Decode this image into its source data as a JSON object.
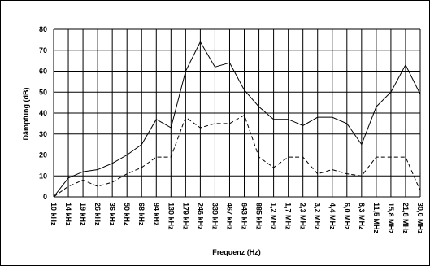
{
  "chart_data": {
    "type": "line",
    "title": "",
    "xlabel": "Frequenz (Hz)",
    "ylabel": "Dämpfung (dB)",
    "ylim": [
      0,
      80
    ],
    "yticks": [
      "0",
      "10",
      "20",
      "30",
      "40",
      "50",
      "60",
      "70",
      "80"
    ],
    "grid": true,
    "legend": "none",
    "categories": [
      "10 kHz",
      "14 kHz",
      "19 kHz",
      "26 kHz",
      "36 kHz",
      "50 kHz",
      "68 kHz",
      "94 kHz",
      "130 kHz",
      "179 kHz",
      "246 kHz",
      "339 kHz",
      "467 kHz",
      "643 kHz",
      "885 kHz",
      "1,2 MHz",
      "1,7 MHz",
      "2,3 MHz",
      "3,2 MHz",
      "4,4 MHz",
      "6,0 MHz",
      "8,3 MHz",
      "11,5 MHz",
      "15,8 MHz",
      "21,8 MHz",
      "30,0 MHz"
    ],
    "series": [
      {
        "values": [
          0,
          9,
          12,
          13,
          16,
          20,
          25,
          37,
          33,
          60,
          74,
          62,
          64,
          51,
          43,
          37,
          37,
          34,
          38,
          38,
          35,
          25,
          43,
          50,
          63,
          49
        ],
        "style": "solid",
        "color": "#000000"
      },
      {
        "values": [
          0,
          5,
          8,
          5,
          7,
          11,
          14,
          19,
          19,
          38,
          33,
          35,
          35,
          39,
          19,
          14,
          19,
          19,
          11,
          13,
          11,
          10,
          19,
          19,
          19,
          3
        ],
        "style": "dashed",
        "color": "#000000"
      }
    ]
  }
}
